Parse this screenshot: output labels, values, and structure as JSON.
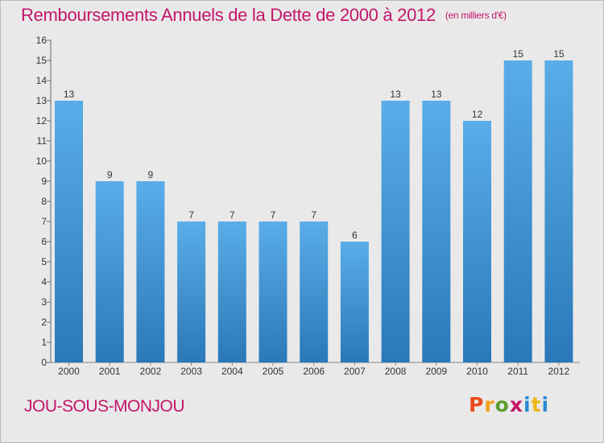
{
  "header": {
    "title": "Remboursements Annuels de la Dette de 2000 à 2012",
    "unit": "(en milliers d'€)"
  },
  "footer": {
    "place": "JOU-SOUS-MONJOU",
    "logo": [
      "P",
      "r",
      "o",
      "x",
      "i",
      "t",
      "i"
    ]
  },
  "colors": {
    "title": "#c4166a",
    "bar_light": "#5aade8",
    "bar_dark": "#2a78b8",
    "background": "#e9e9e9",
    "logo": [
      "#e94b1b",
      "#f4a21b",
      "#5a9e2f",
      "#c4166a",
      "#2a8ad2",
      "#f0b414",
      "#2a8ad2"
    ]
  },
  "chart_data": {
    "type": "bar",
    "title": "Remboursements Annuels de la Dette de 2000 à 2012",
    "subtitle": "(en milliers d'€)",
    "categories": [
      "2000",
      "2001",
      "2002",
      "2003",
      "2004",
      "2005",
      "2006",
      "2007",
      "2008",
      "2009",
      "2010",
      "2011",
      "2012"
    ],
    "values": [
      13,
      9,
      9,
      7,
      7,
      7,
      7,
      6,
      13,
      13,
      12,
      15,
      15
    ],
    "ylim": [
      0,
      16
    ],
    "yticks": [
      0,
      1,
      2,
      3,
      4,
      5,
      6,
      7,
      8,
      9,
      10,
      11,
      12,
      13,
      14,
      15,
      16
    ],
    "grid": false,
    "legend": "none"
  }
}
